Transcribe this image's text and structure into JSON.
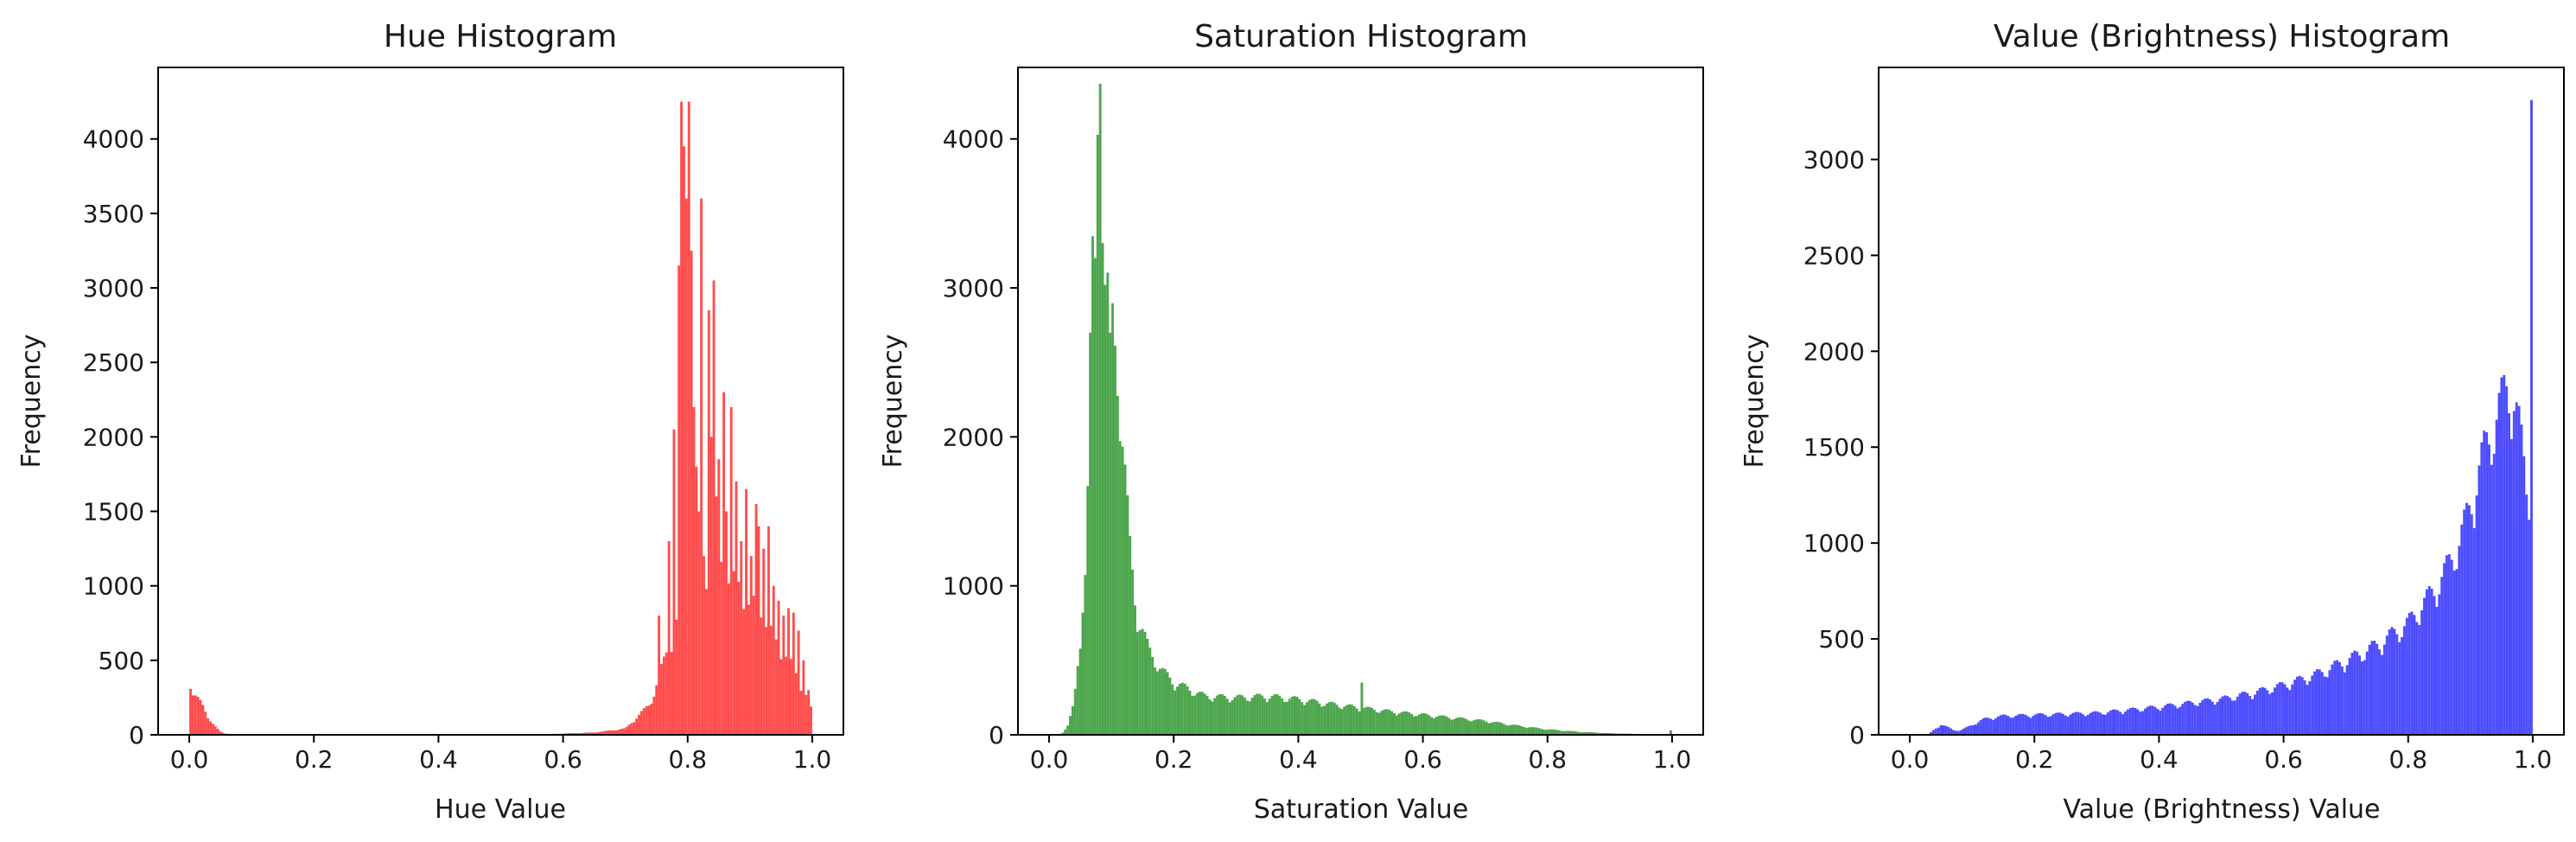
{
  "chart_data": [
    {
      "type": "bar",
      "title": "Hue Histogram",
      "xlabel": "Hue Value",
      "ylabel": "Frequency",
      "color": "#ff4d4d",
      "xlim": [
        -0.05,
        1.05
      ],
      "ylim": [
        0,
        4480
      ],
      "xticks": [
        0.0,
        0.2,
        0.4,
        0.6,
        0.8,
        1.0
      ],
      "xtick_labels": [
        "0.0",
        "0.2",
        "0.4",
        "0.6",
        "0.8",
        "1.0"
      ],
      "yticks": [
        0,
        500,
        1000,
        1500,
        2000,
        2500,
        3000,
        3500,
        4000
      ],
      "ytick_labels": [
        "0",
        "500",
        "1000",
        "1500",
        "2000",
        "2500",
        "3000",
        "3500",
        "4000"
      ],
      "bins": {
        "start": 0.0,
        "width": 0.004,
        "count": 250
      },
      "profile": [
        [
          0.0,
          420
        ],
        [
          0.004,
          280
        ],
        [
          0.01,
          250
        ],
        [
          0.02,
          200
        ],
        [
          0.03,
          120
        ],
        [
          0.04,
          60
        ],
        [
          0.05,
          20
        ],
        [
          0.06,
          5
        ],
        [
          0.08,
          0
        ],
        [
          0.55,
          0
        ],
        [
          0.6,
          8
        ],
        [
          0.65,
          15
        ],
        [
          0.7,
          40
        ],
        [
          0.72,
          120
        ],
        [
          0.74,
          200
        ],
        [
          0.76,
          450
        ],
        [
          0.78,
          700
        ],
        [
          0.8,
          950
        ],
        [
          0.82,
          1000
        ],
        [
          0.84,
          1050
        ],
        [
          0.86,
          1100
        ],
        [
          0.88,
          950
        ],
        [
          0.9,
          850
        ],
        [
          0.92,
          800
        ],
        [
          0.94,
          600
        ],
        [
          0.96,
          500
        ],
        [
          0.98,
          350
        ],
        [
          1.0,
          150
        ]
      ],
      "spikes": [
        [
          0.752,
          800
        ],
        [
          0.768,
          1300
        ],
        [
          0.776,
          2050
        ],
        [
          0.784,
          3150
        ],
        [
          0.788,
          4250
        ],
        [
          0.792,
          3950
        ],
        [
          0.796,
          3600
        ],
        [
          0.8,
          4250
        ],
        [
          0.804,
          3250
        ],
        [
          0.808,
          2200
        ],
        [
          0.812,
          1800
        ],
        [
          0.816,
          1500
        ],
        [
          0.82,
          3600
        ],
        [
          0.824,
          1200
        ],
        [
          0.832,
          2850
        ],
        [
          0.836,
          2000
        ],
        [
          0.84,
          3050
        ],
        [
          0.844,
          1600
        ],
        [
          0.848,
          1850
        ],
        [
          0.856,
          2300
        ],
        [
          0.86,
          1500
        ],
        [
          0.868,
          2200
        ],
        [
          0.876,
          1700
        ],
        [
          0.884,
          1300
        ],
        [
          0.892,
          1650
        ],
        [
          0.9,
          1200
        ],
        [
          0.908,
          1550
        ],
        [
          0.912,
          1400
        ],
        [
          0.92,
          1250
        ],
        [
          0.928,
          1400
        ],
        [
          0.936,
          1000
        ],
        [
          0.944,
          900
        ],
        [
          0.952,
          800
        ],
        [
          0.96,
          850
        ],
        [
          0.968,
          820
        ],
        [
          0.976,
          700
        ],
        [
          0.984,
          500
        ],
        [
          0.992,
          300
        ]
      ]
    },
    {
      "type": "bar",
      "title": "Saturation Histogram",
      "xlabel": "Saturation Value",
      "ylabel": "Frequency",
      "color": "#4da64d",
      "xlim": [
        -0.05,
        1.05
      ],
      "ylim": [
        0,
        4480
      ],
      "xticks": [
        0.0,
        0.2,
        0.4,
        0.6,
        0.8,
        1.0
      ],
      "xtick_labels": [
        "0.0",
        "0.2",
        "0.4",
        "0.6",
        "0.8",
        "1.0"
      ],
      "yticks": [
        0,
        1000,
        2000,
        3000,
        4000
      ],
      "ytick_labels": [
        "0",
        "1000",
        "2000",
        "3000",
        "4000"
      ],
      "bins": {
        "start": 0.0,
        "width": 0.004,
        "count": 250
      },
      "profile": [
        [
          0.0,
          0
        ],
        [
          0.02,
          5
        ],
        [
          0.03,
          60
        ],
        [
          0.04,
          200
        ],
        [
          0.05,
          600
        ],
        [
          0.06,
          1200
        ],
        [
          0.07,
          3000
        ],
        [
          0.075,
          3900
        ],
        [
          0.08,
          4100
        ],
        [
          0.085,
          3600
        ],
        [
          0.09,
          2900
        ],
        [
          0.1,
          2700
        ],
        [
          0.11,
          2400
        ],
        [
          0.12,
          1800
        ],
        [
          0.13,
          1200
        ],
        [
          0.14,
          800
        ],
        [
          0.16,
          550
        ],
        [
          0.18,
          420
        ],
        [
          0.2,
          340
        ],
        [
          0.25,
          250
        ],
        [
          0.3,
          240
        ],
        [
          0.35,
          250
        ],
        [
          0.4,
          230
        ],
        [
          0.45,
          200
        ],
        [
          0.5,
          175
        ],
        [
          0.55,
          150
        ],
        [
          0.6,
          130
        ],
        [
          0.65,
          110
        ],
        [
          0.7,
          90
        ],
        [
          0.75,
          60
        ],
        [
          0.8,
          35
        ],
        [
          0.85,
          20
        ],
        [
          0.9,
          10
        ],
        [
          0.95,
          5
        ],
        [
          1.0,
          3
        ]
      ],
      "spikes": [
        [
          0.052,
          820
        ],
        [
          0.064,
          2700
        ],
        [
          0.072,
          3200
        ],
        [
          0.08,
          4370
        ],
        [
          0.096,
          2700
        ],
        [
          0.5,
          350
        ],
        [
          1.0,
          30
        ]
      ]
    },
    {
      "type": "bar",
      "title": "Value (Brightness) Histogram",
      "xlabel": "Value (Brightness) Value",
      "ylabel": "Frequency",
      "color": "#4d4dff",
      "xlim": [
        -0.05,
        1.05
      ],
      "ylim": [
        0,
        3480
      ],
      "xticks": [
        0.0,
        0.2,
        0.4,
        0.6,
        0.8,
        1.0
      ],
      "xtick_labels": [
        "0.0",
        "0.2",
        "0.4",
        "0.6",
        "0.8",
        "1.0"
      ],
      "yticks": [
        0,
        500,
        1000,
        1500,
        2000,
        2500,
        3000
      ],
      "ytick_labels": [
        "0",
        "500",
        "1000",
        "1500",
        "2000",
        "2500",
        "3000"
      ],
      "bins": {
        "start": 0.0,
        "width": 0.004,
        "count": 250
      },
      "profile": [
        [
          0.0,
          0
        ],
        [
          0.03,
          0
        ],
        [
          0.04,
          30
        ],
        [
          0.05,
          50
        ],
        [
          0.06,
          40
        ],
        [
          0.07,
          25
        ],
        [
          0.08,
          20
        ],
        [
          0.1,
          50
        ],
        [
          0.12,
          80
        ],
        [
          0.15,
          95
        ],
        [
          0.2,
          100
        ],
        [
          0.3,
          110
        ],
        [
          0.4,
          140
        ],
        [
          0.5,
          180
        ],
        [
          0.55,
          210
        ],
        [
          0.6,
          250
        ],
        [
          0.65,
          300
        ],
        [
          0.7,
          370
        ],
        [
          0.75,
          450
        ],
        [
          0.8,
          560
        ],
        [
          0.85,
          760
        ],
        [
          0.88,
          950
        ],
        [
          0.9,
          1150
        ],
        [
          0.92,
          1400
        ],
        [
          0.94,
          1580
        ],
        [
          0.96,
          1750
        ],
        [
          0.97,
          1700
        ],
        [
          0.98,
          1500
        ],
        [
          0.99,
          1250
        ],
        [
          0.996,
          1230
        ]
      ],
      "spikes": [
        [
          0.996,
          3310
        ]
      ]
    }
  ]
}
